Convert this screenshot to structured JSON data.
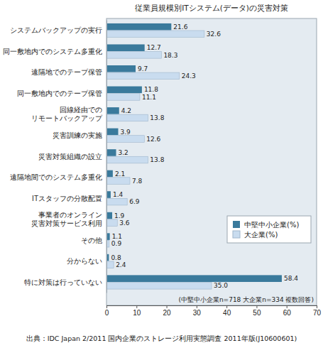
{
  "chart_data": {
    "type": "bar",
    "orientation": "horizontal",
    "title": "従業員規模別ITシステム(データ)の災害対策",
    "categories": [
      "システムバックアップの実行",
      "同一敷地内でのシステム多重化",
      "遠隔地でのテープ保管",
      "同一敷地内でのテープ保管",
      "回線経由での\nリモートバックアップ",
      "災害訓練の実施",
      "災害対策組織の設立",
      "遠隔地間でのシステム多重化",
      "ITスタッフの分散配置",
      "事業者のオンライン\n災害対策サービス利用",
      "その他",
      "分からない",
      "特に対策は行っていない"
    ],
    "series": [
      {
        "name": "中堅中小企業(%)",
        "color": "#3a7a9c",
        "values": [
          21.6,
          12.7,
          9.7,
          11.8,
          4.2,
          3.9,
          3.2,
          2.1,
          1.4,
          1.9,
          1.1,
          0.8,
          58.4
        ],
        "value_labels": [
          "21.6",
          "12.7",
          "9.7",
          "11.8",
          "4.2",
          "3.9",
          "3.2",
          "2.1",
          "1.4",
          "1.9",
          "1.1",
          "0.8",
          "58.4"
        ]
      },
      {
        "name": "大企業(%)",
        "color": "#c9dcef",
        "values": [
          32.6,
          18.3,
          24.3,
          11.1,
          13.8,
          12.6,
          13.8,
          7.8,
          6.9,
          3.6,
          0.9,
          2.4,
          35.0
        ],
        "value_labels": [
          "32.6",
          "18.3",
          "24.3",
          "11.1",
          "13.8",
          "12.6",
          "13.8",
          "7.8",
          "6.9",
          "3.6",
          "0.9",
          "2.4",
          "35.0"
        ]
      }
    ],
    "xlim": [
      0,
      70
    ],
    "xticks": [
      0,
      10,
      20,
      30,
      40,
      50,
      60,
      70
    ],
    "grid": false,
    "legend": "lower right",
    "data_labels": true,
    "annotations": [
      "(中堅中小企業n=718 大企業n=334 複数回答)",
      "出典：IDC Japan 2/2011 国内企業のストレージ利用実態調査 2011年版(J10600601)"
    ]
  }
}
